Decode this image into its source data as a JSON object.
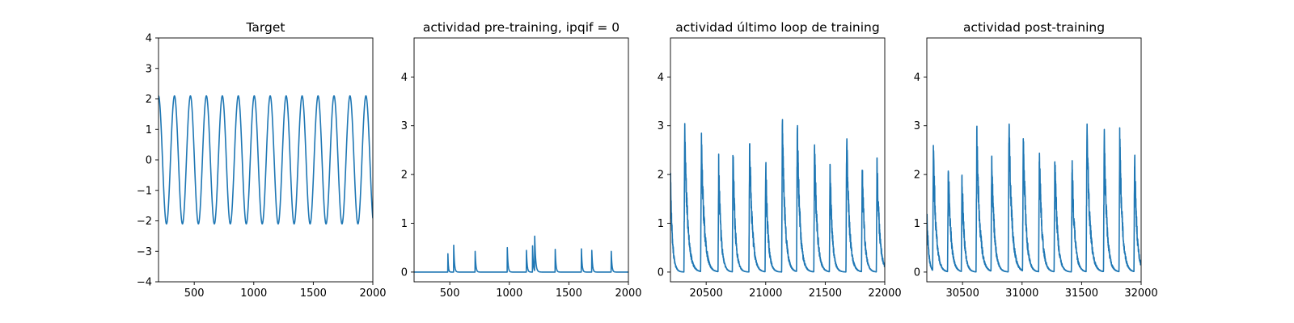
{
  "chart_data": [
    {
      "type": "line",
      "title": "Target",
      "xlabel": "",
      "ylabel": "",
      "xlim": [
        200,
        2000
      ],
      "ylim": [
        -4,
        4
      ],
      "xticks": [
        500,
        1000,
        1500,
        2000
      ],
      "xtick_labels": [
        "500",
        "1000",
        "1500",
        "2000"
      ],
      "yticks": [
        -4,
        -3,
        -2,
        -1,
        0,
        1,
        2,
        3,
        4
      ],
      "ytick_labels": [
        "−4",
        "−3",
        "−2",
        "−1",
        "0",
        "1",
        "2",
        "3",
        "4"
      ],
      "color": "#1f77b4",
      "grid": false,
      "series": [
        {
          "x_start": 200,
          "x_end": 2000,
          "kind": "sine",
          "amplitude": 2.1,
          "period": 134,
          "phase_x": 200
        }
      ]
    },
    {
      "type": "line",
      "title": "actividad pre-training, ipqif = 0",
      "xlabel": "",
      "ylabel": "",
      "xlim": [
        200,
        2000
      ],
      "ylim": [
        -0.2,
        4.8
      ],
      "xticks": [
        500,
        1000,
        1500,
        2000
      ],
      "xtick_labels": [
        "500",
        "1000",
        "1500",
        "2000"
      ],
      "yticks": [
        0,
        1,
        2,
        3,
        4
      ],
      "ytick_labels": [
        "0",
        "1",
        "2",
        "3",
        "4"
      ],
      "color": "#1f77b4",
      "grid": false,
      "series": [
        {
          "x_start": 200,
          "x_end": 2000,
          "kind": "spikes",
          "baseline": 0,
          "spikes": [
            {
              "x": 483,
              "peak": 0.5,
              "width": 8,
              "tau": 4
            },
            {
              "x": 533,
              "peak": 0.55,
              "width": 8,
              "tau": 6
            },
            {
              "x": 712,
              "peak": 0.5,
              "width": 8,
              "tau": 6
            },
            {
              "x": 983,
              "peak": 0.5,
              "width": 8,
              "tau": 6
            },
            {
              "x": 1143,
              "peak": 0.5,
              "width": 8,
              "tau": 6
            },
            {
              "x": 1195,
              "peak": 0.55,
              "width": 8,
              "tau": 6
            },
            {
              "x": 1212,
              "peak": 0.82,
              "width": 8,
              "tau": 8
            },
            {
              "x": 1385,
              "peak": 0.5,
              "width": 8,
              "tau": 6
            },
            {
              "x": 1605,
              "peak": 0.5,
              "width": 8,
              "tau": 6
            },
            {
              "x": 1692,
              "peak": 0.5,
              "width": 8,
              "tau": 6
            },
            {
              "x": 1855,
              "peak": 0.5,
              "width": 8,
              "tau": 6
            }
          ]
        }
      ]
    },
    {
      "type": "line",
      "title": "actividad último loop de training",
      "xlabel": "",
      "ylabel": "",
      "xlim": [
        20200,
        22000
      ],
      "ylim": [
        -0.2,
        4.8
      ],
      "xticks": [
        20500,
        21000,
        21500,
        22000
      ],
      "xtick_labels": [
        "20500",
        "21000",
        "21500",
        "22000"
      ],
      "yticks": [
        0,
        1,
        2,
        3,
        4
      ],
      "ytick_labels": [
        "0",
        "1",
        "2",
        "3",
        "4"
      ],
      "color": "#1f77b4",
      "grid": false,
      "series": [
        {
          "x_start": 20200,
          "x_end": 22000,
          "kind": "bursts",
          "baseline": 0,
          "bursts": [
            {
              "x": 20200,
              "peak": 1.85,
              "width": 30
            },
            {
              "x": 20320,
              "peak": 2.85,
              "width": 45
            },
            {
              "x": 20460,
              "peak": 2.6,
              "width": 45
            },
            {
              "x": 20605,
              "peak": 2.2,
              "width": 35
            },
            {
              "x": 20725,
              "peak": 2.45,
              "width": 35
            },
            {
              "x": 20865,
              "peak": 2.65,
              "width": 40
            },
            {
              "x": 21000,
              "peak": 2.2,
              "width": 35
            },
            {
              "x": 21140,
              "peak": 3.1,
              "width": 40
            },
            {
              "x": 21265,
              "peak": 3.0,
              "width": 40
            },
            {
              "x": 21410,
              "peak": 2.55,
              "width": 40
            },
            {
              "x": 21540,
              "peak": 2.1,
              "width": 35
            },
            {
              "x": 21680,
              "peak": 2.8,
              "width": 40
            },
            {
              "x": 21810,
              "peak": 2.2,
              "width": 35
            },
            {
              "x": 21935,
              "peak": 2.25,
              "width": 40
            }
          ]
        }
      ]
    },
    {
      "type": "line",
      "title": "actividad post-training",
      "xlabel": "",
      "ylabel": "",
      "xlim": [
        30200,
        32000
      ],
      "ylim": [
        -0.2,
        4.8
      ],
      "xticks": [
        30500,
        31000,
        31500,
        32000
      ],
      "xtick_labels": [
        "30500",
        "31000",
        "31500",
        "32000"
      ],
      "yticks": [
        0,
        1,
        2,
        3,
        4
      ],
      "ytick_labels": [
        "0",
        "1",
        "2",
        "3",
        "4"
      ],
      "color": "#1f77b4",
      "grid": false,
      "series": [
        {
          "x_start": 30200,
          "x_end": 32000,
          "kind": "bursts",
          "baseline": 0,
          "bursts": [
            {
              "x": 30200,
              "peak": 1.3,
              "width": 25
            },
            {
              "x": 30255,
              "peak": 2.5,
              "width": 40
            },
            {
              "x": 30380,
              "peak": 2.15,
              "width": 40
            },
            {
              "x": 30495,
              "peak": 1.95,
              "width": 35
            },
            {
              "x": 30620,
              "peak": 2.8,
              "width": 45
            },
            {
              "x": 30745,
              "peak": 2.3,
              "width": 40
            },
            {
              "x": 30890,
              "peak": 3.0,
              "width": 45
            },
            {
              "x": 31010,
              "peak": 2.8,
              "width": 40
            },
            {
              "x": 31145,
              "peak": 2.4,
              "width": 40
            },
            {
              "x": 31275,
              "peak": 2.3,
              "width": 40
            },
            {
              "x": 31420,
              "peak": 2.2,
              "width": 40
            },
            {
              "x": 31545,
              "peak": 2.9,
              "width": 45
            },
            {
              "x": 31690,
              "peak": 2.75,
              "width": 40
            },
            {
              "x": 31820,
              "peak": 2.8,
              "width": 40
            },
            {
              "x": 31945,
              "peak": 2.35,
              "width": 35
            }
          ]
        }
      ]
    }
  ]
}
